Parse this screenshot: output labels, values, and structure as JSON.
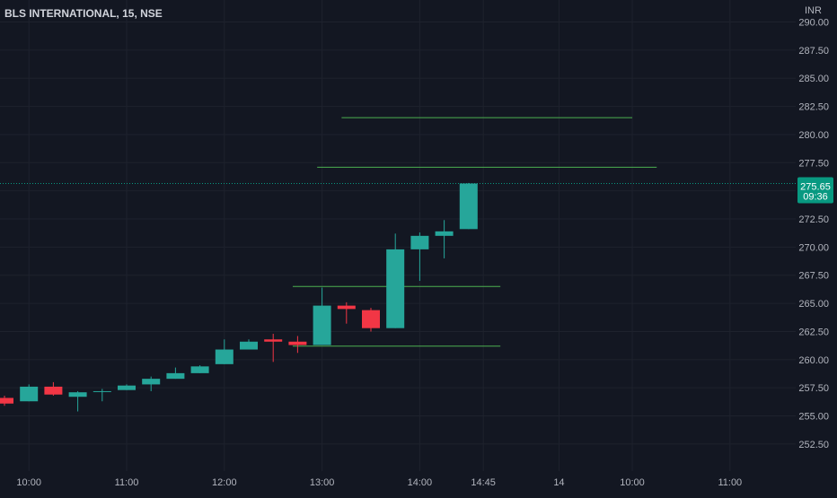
{
  "header": {
    "symbol": "BLS INTERNATIONAL, 15, NSE",
    "currency": "INR"
  },
  "price_marker": {
    "price": "275.65",
    "countdown": "09:36",
    "value": 275.65,
    "color": "#089981"
  },
  "colors": {
    "background": "#131722",
    "grid": "#1e222d",
    "up": "#26a69a",
    "down": "#f23645",
    "drawn_lines": "#4caf50",
    "axis_text": "#b2b5be"
  },
  "chart_data": {
    "type": "candlestick",
    "symbol": "BLS INTERNATIONAL",
    "interval": "15",
    "exchange": "NSE",
    "currency": "INR",
    "ylim": [
      250.0,
      290.0
    ],
    "y_ticks": [
      252.5,
      255.0,
      257.5,
      260.0,
      262.5,
      265.0,
      267.5,
      270.0,
      272.5,
      275.0,
      277.5,
      280.0,
      282.5,
      285.0,
      287.5,
      290.0
    ],
    "y_tick_labels": [
      "252.50",
      "255.00",
      "257.50",
      "260.00",
      "262.50",
      "265.00",
      "267.50",
      "270.00",
      "272.50",
      "275.00",
      "277.50",
      "280.00",
      "282.50",
      "285.00",
      "287.50",
      "290.00"
    ],
    "x_ticks": [
      {
        "label": "10:00",
        "bar": 1.0
      },
      {
        "label": "11:00",
        "bar": 5.0
      },
      {
        "label": "12:00",
        "bar": 9.0
      },
      {
        "label": "13:00",
        "bar": 13.0
      },
      {
        "label": "14:00",
        "bar": 17.0
      },
      {
        "label": "14:45",
        "bar": 19.6
      },
      {
        "label": "14",
        "bar": 22.7
      },
      {
        "label": "10:00",
        "bar": 25.7
      },
      {
        "label": "11:00",
        "bar": 29.7
      }
    ],
    "candles": [
      {
        "open": 256.6,
        "high": 256.8,
        "close": 256.1,
        "low": 255.9
      },
      {
        "open": 256.3,
        "high": 257.8,
        "close": 257.6,
        "low": 256.3
      },
      {
        "open": 257.6,
        "high": 258.0,
        "close": 256.9,
        "low": 256.8
      },
      {
        "open": 256.7,
        "high": 257.2,
        "close": 257.1,
        "low": 255.4
      },
      {
        "open": 257.2,
        "high": 257.4,
        "close": 257.2,
        "low": 256.3
      },
      {
        "open": 257.3,
        "high": 257.8,
        "close": 257.7,
        "low": 257.3
      },
      {
        "open": 257.8,
        "high": 258.5,
        "close": 258.3,
        "low": 257.2
      },
      {
        "open": 258.3,
        "high": 259.3,
        "close": 258.8,
        "low": 258.3
      },
      {
        "open": 258.8,
        "high": 259.5,
        "close": 259.4,
        "low": 258.8
      },
      {
        "open": 259.6,
        "high": 261.8,
        "close": 260.9,
        "low": 259.6
      },
      {
        "open": 260.9,
        "high": 261.8,
        "close": 261.6,
        "low": 260.9
      },
      {
        "open": 261.8,
        "high": 262.3,
        "close": 261.6,
        "low": 259.8
      },
      {
        "open": 261.6,
        "high": 262.1,
        "close": 261.3,
        "low": 260.6
      },
      {
        "open": 261.3,
        "high": 266.4,
        "close": 264.8,
        "low": 261.3
      },
      {
        "open": 264.8,
        "high": 265.1,
        "close": 264.5,
        "low": 263.2
      },
      {
        "open": 264.4,
        "high": 264.6,
        "close": 262.8,
        "low": 262.5
      },
      {
        "open": 262.8,
        "high": 271.2,
        "close": 269.8,
        "low": 262.8
      },
      {
        "open": 269.8,
        "high": 271.3,
        "close": 271.0,
        "low": 267.0
      },
      {
        "open": 271.0,
        "high": 272.4,
        "close": 271.4,
        "low": 269.0
      },
      {
        "open": 271.6,
        "high": 275.7,
        "close": 275.65,
        "low": 271.6
      }
    ],
    "horizontal_lines": [
      {
        "price": 281.5,
        "from_bar": 13.8,
        "to_bar": 25.7
      },
      {
        "price": 277.1,
        "from_bar": 12.8,
        "to_bar": 26.7
      },
      {
        "price": 266.5,
        "from_bar": 11.8,
        "to_bar": 20.3
      },
      {
        "price": 261.2,
        "from_bar": 11.8,
        "to_bar": 20.3
      }
    ],
    "last_price": 275.65,
    "grid": true
  }
}
